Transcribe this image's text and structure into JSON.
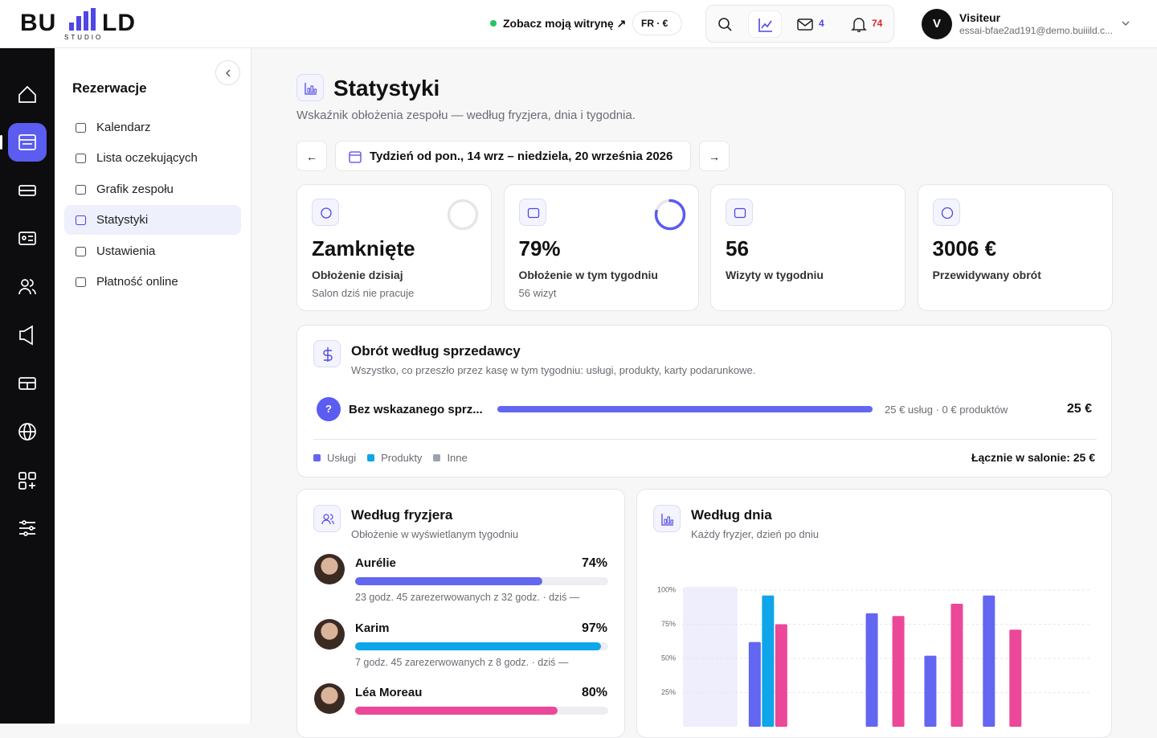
{
  "header": {
    "logo_left": "BU",
    "logo_right": "LD",
    "logo_sub": "STUDIO",
    "site_link": "Zobacz moją witrynę ↗",
    "lang_currency": "FR · €",
    "mail_count": "4",
    "notif_count": "74",
    "user_initial": "V",
    "user_name": "Visiteur",
    "user_email": "essai-bfae2ad191@demo.buiiild.c..."
  },
  "sidebar": {
    "title": "Rezerwacje",
    "items": [
      "Kalendarz",
      "Lista oczekujących",
      "Grafik zespołu",
      "Statystyki",
      "Ustawienia",
      "Płatność online"
    ],
    "active": 3
  },
  "page": {
    "title": "Statystyki",
    "subtitle": "Wskaźnik obłożenia zespołu — według fryzjera, dnia i tygodnia.",
    "prev": "←",
    "next": "→",
    "week_label": "Tydzień od pon., 14 wrz – niedziela, 20 września 2026"
  },
  "kpis": [
    {
      "value": "Zamknięte",
      "label": "Obłożenie dzisiaj",
      "note": "Salon dziś nie pracuje"
    },
    {
      "value": 79,
      "value_label": "79%",
      "label": "Obłożenie w tym tygodniu",
      "note": "56 wizyt"
    },
    {
      "value": "56",
      "label": "Wizyty w tygodniu"
    },
    {
      "value": "3006 €",
      "label": "Przewidywany obrót"
    }
  ],
  "sellers": {
    "title": "Obrót według sprzedawcy",
    "subtitle": "Wszystko, co przeszło przez kasę w tym tygodniu: usługi, produkty, karty podarunkowe.",
    "rows": [
      {
        "initial": "?",
        "name": "Bez wskazanego sprz...",
        "amount": 25,
        "amount_label": "25 €",
        "detail": "25 € usług · 0 € produktów"
      }
    ],
    "legend": [
      {
        "name": "Usługi",
        "color": "#6366f1"
      },
      {
        "name": "Produkty",
        "color": "#0ea5e9"
      },
      {
        "name": "Inne",
        "color": "#9ca3af"
      }
    ],
    "total": "Łącznie w salonie: 25 €"
  },
  "stylists": {
    "title": "Według fryzjera",
    "subtitle": "Obłożenie w wyświetlanym tygodniu",
    "rows": [
      {
        "name": "Aurélie",
        "percent": 74,
        "percent_label": "74%",
        "detail": "23 godz. 45 zarezerwowanych z 32 godz. · dziś —",
        "color": "#6366f1"
      },
      {
        "name": "Karim",
        "percent": 97,
        "percent_label": "97%",
        "detail": "7 godz. 45 zarezerwowanych z 8 godz. · dziś —",
        "color": "#0ea5e9"
      },
      {
        "name": "Léa Moreau",
        "percent": 80,
        "percent_label": "80%",
        "color": "#ec4899"
      }
    ]
  },
  "day_chart": {
    "type": "bar",
    "title": "Według dnia",
    "subtitle": "Każdy fryzjer, dzień po dniu",
    "ylim": [
      0,
      100
    ],
    "yticks": [
      {
        "value": 25,
        "label": "25%"
      },
      {
        "value": 50,
        "label": "50%"
      },
      {
        "value": 75,
        "label": "75%"
      },
      {
        "value": 100,
        "label": "100%"
      }
    ],
    "highlight": 0,
    "series": [
      {
        "color": "#6366f1",
        "values": [
          null,
          62,
          null,
          83,
          52,
          96,
          null
        ]
      },
      {
        "color": "#0ea5e9",
        "values": [
          null,
          96,
          null,
          null,
          null,
          null,
          null
        ]
      },
      {
        "color": "#ec4899",
        "values": [
          null,
          75,
          null,
          81,
          90,
          71,
          null
        ]
      }
    ]
  }
}
